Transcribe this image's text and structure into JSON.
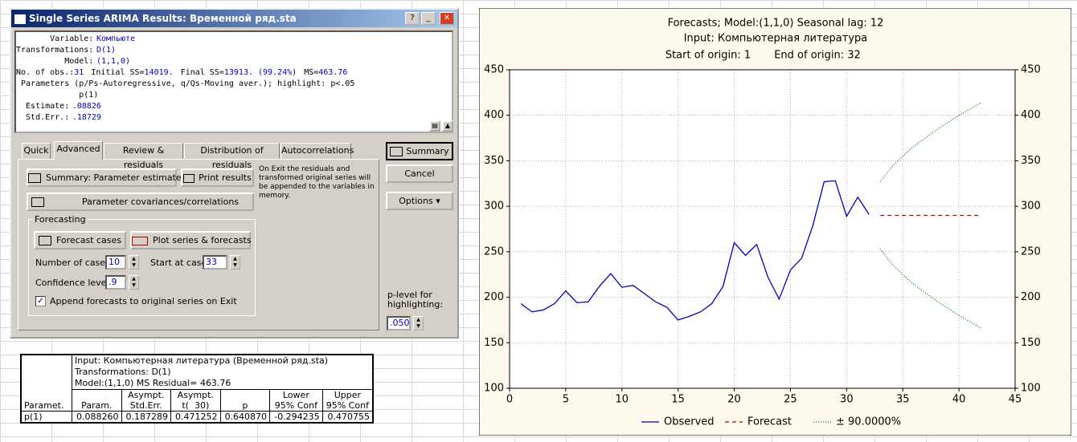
{
  "window": {
    "title": "Single Series ARIMA Results: Временной ряд.sta",
    "summary": [
      [
        "Variable:",
        "Компьюте"
      ],
      [
        "Transformations:",
        "D(1)"
      ],
      [
        "Model:",
        "(1,1,0)"
      ],
      [
        "No. of obs.:",
        "31",
        "Initial SS=",
        "14019.",
        "Final SS=",
        "13913. (99.24%)",
        "MS=",
        "463.76"
      ],
      [
        "Parameters (p/Ps-Autoregressive, q/Qs-Moving aver.); highlight: p<.05"
      ],
      [
        "p(1)"
      ],
      [
        "Estimate:",
        ".08826"
      ],
      [
        "Std.Err.:",
        ".18729"
      ]
    ],
    "tabs": [
      "Quick",
      "Advanced",
      "Review & residuals",
      "Distribution of residuals",
      "Autocorrelations"
    ],
    "buttons": {
      "summary": "Summary",
      "cancel": "Cancel",
      "options": "Options",
      "param_estimates": "Summary: Parameter estimates",
      "print_results": "Print results",
      "covariances": "Parameter covariances/correlations",
      "forecast_cases": "Forecast cases",
      "plot_series": "Plot series & forecasts"
    },
    "exit_note": "On Exit the residuals and transformed original series will be appended to the variables in memory.",
    "forecasting": {
      "group": "Forecasting",
      "number_of_cases_label": "Number of cases:",
      "number_of_cases": "10",
      "start_at_case_label": "Start at case:",
      "start_at_case": "33",
      "confidence_label": "Confidence level:",
      "confidence": ".9",
      "append_label": "Append forecasts to original series on Exit"
    },
    "p_level_label": "p-level for highlighting:",
    "p_level": ".050"
  },
  "table": {
    "info": [
      "Input: Компьютерная литература (Временной ряд.sta)",
      "Transformations: D(1)",
      "Model:(1,1,0) MS Residual= 463.76"
    ],
    "columns": [
      "Paramet.",
      "Param.",
      "Asympt.\nStd.Err.",
      "Asympt.\nt(  30)",
      "p",
      "Lower\n95% Conf",
      "Upper\n95% Conf"
    ],
    "rows": [
      [
        "p(1)",
        "0.088260",
        "0.187289",
        "0.471252",
        "0.640870",
        "-0.294235",
        "0.470755"
      ]
    ]
  },
  "chart_data": {
    "type": "line",
    "title": "Forecasts; Model:(1,1,0) Seasonal lag: 12",
    "subtitle": "Input: Компьютерная литература",
    "origin_start": "Start of origin: 1",
    "origin_end": "End of origin: 32",
    "xlim": [
      0,
      45
    ],
    "xticks": [
      0,
      5,
      10,
      15,
      20,
      25,
      30,
      35,
      40,
      45
    ],
    "ylim": [
      100,
      450
    ],
    "yticks": [
      100,
      150,
      200,
      250,
      300,
      350,
      400,
      450
    ],
    "y2lim": [
      100,
      450
    ],
    "y2ticks": [
      100,
      150,
      200,
      250,
      300,
      350,
      400,
      450
    ],
    "grid": true,
    "series": [
      {
        "name": "Observed",
        "color": "#0000c0",
        "style": "solid",
        "x": [
          1,
          2,
          3,
          4,
          5,
          6,
          7,
          8,
          9,
          10,
          11,
          12,
          13,
          14,
          15,
          16,
          17,
          18,
          19,
          20,
          21,
          22,
          23,
          24,
          25,
          26,
          27,
          28,
          29,
          30,
          31,
          32
        ],
        "values": [
          193,
          184,
          186,
          193,
          207,
          194,
          195,
          212,
          226,
          211,
          213,
          204,
          195,
          189,
          175,
          179,
          184,
          193,
          212,
          260,
          246,
          258,
          222,
          198,
          230,
          243,
          279,
          327,
          328,
          289,
          310,
          291
        ]
      },
      {
        "name": "Forecast",
        "color": "#c00000",
        "style": "dashed",
        "x": [
          33,
          34,
          35,
          36,
          37,
          38,
          39,
          40,
          41,
          42
        ],
        "values": [
          290,
          290,
          290,
          290,
          290,
          290,
          290,
          290,
          290,
          290
        ]
      },
      {
        "name": "± 90.0000%",
        "color": "#008000",
        "style": "dotted",
        "x": [
          33,
          34,
          35,
          36,
          37,
          38,
          39,
          40,
          41,
          42
        ],
        "upper": [
          327,
          343,
          355,
          366,
          375,
          384,
          392,
          400,
          407,
          414
        ],
        "lower": [
          253,
          237,
          225,
          214,
          205,
          196,
          188,
          180,
          173,
          166
        ]
      }
    ]
  }
}
